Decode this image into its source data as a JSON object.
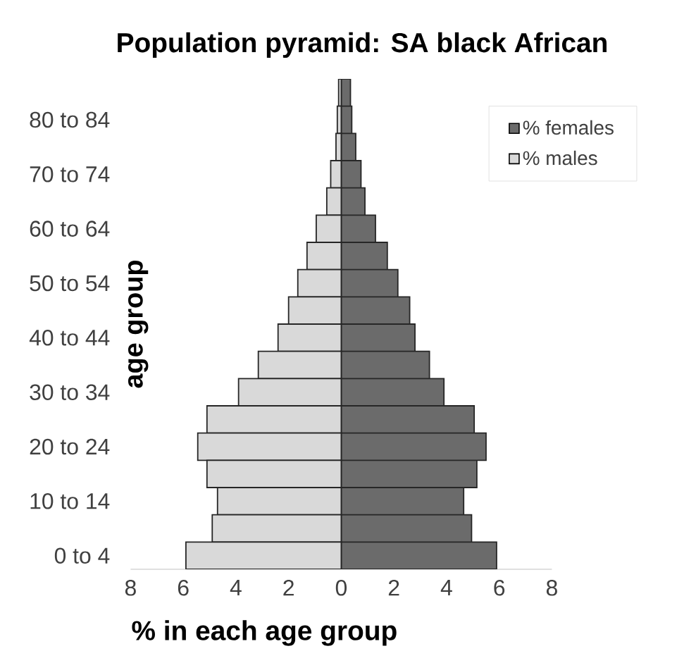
{
  "chart_data": {
    "type": "bar",
    "orientation": "horizontal",
    "stacked": true,
    "title": "Population pyramid: SA black African",
    "xlabel": "% in each age group",
    "ylabel": "age group",
    "categories": [
      null,
      "80 to 84",
      null,
      "70 to 74",
      null,
      "60 to 64",
      null,
      "50 to 54",
      null,
      "40 to 44",
      null,
      "30 to 34",
      null,
      "20 to 24",
      null,
      "10 to 14",
      null,
      "0 to 4"
    ],
    "series": [
      {
        "name": "% females",
        "color": "#6b6b6b",
        "values": [
          0.35,
          0.4,
          0.55,
          0.75,
          0.9,
          1.3,
          1.75,
          2.15,
          2.6,
          2.8,
          3.35,
          3.9,
          5.05,
          5.5,
          5.15,
          4.65,
          4.95,
          5.9
        ]
      },
      {
        "name": "% males",
        "color": "#d9d9d9",
        "values": [
          -0.1,
          -0.15,
          -0.2,
          -0.4,
          -0.55,
          -0.95,
          -1.3,
          -1.65,
          -2.0,
          -2.4,
          -3.15,
          -3.9,
          -5.1,
          -5.45,
          -5.1,
          -4.7,
          -4.9,
          -5.9
        ]
      }
    ],
    "xlim": [
      -8,
      8
    ],
    "xticks": [
      {
        "value": -8,
        "label": "8"
      },
      {
        "value": -6,
        "label": "6"
      },
      {
        "value": -4,
        "label": "4"
      },
      {
        "value": -2,
        "label": "2"
      },
      0,
      2,
      4,
      6,
      8
    ],
    "legend": "top right",
    "grid": false
  }
}
